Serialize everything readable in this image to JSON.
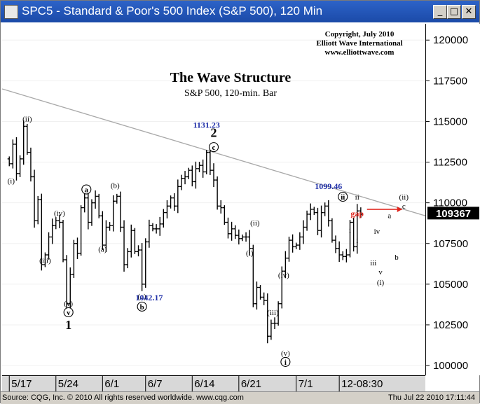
{
  "window": {
    "title": "SPC5 - Standard & Poor's 500 Index (S&P 500), 120 Min",
    "min_glyph": "_",
    "max_glyph": "□",
    "close_glyph": "✕"
  },
  "status_bar": {
    "source": "Source: CQG, Inc. © 2010 All rights reserved worldwide.  www.cqg.com",
    "timestamp": "Thu Jul 22 2010 17:11:44"
  },
  "colors": {
    "bar": "#000000",
    "trendline": "#a8a8a8",
    "price_label": "#1f2fa8",
    "gap": "#e0241c"
  },
  "chart_data": {
    "type": "ohlc",
    "title": "The Wave Structure",
    "subtitle": "S&P 500, 120-min. Bar",
    "copyright": [
      "Copyright, July 2010",
      "Elliott Wave International",
      "www.elliottwave.com"
    ],
    "y_ticks": [
      100000,
      102500,
      105000,
      107500,
      110000,
      112500,
      115000,
      117500,
      120000
    ],
    "ylim": [
      99400,
      121000
    ],
    "current_price": "109367",
    "x_ticks": [
      "5/17",
      "5/24",
      "6/1",
      "6/7",
      "6/14",
      "6/21",
      "7/1",
      "12-08:30"
    ],
    "x_tick_pos": [
      0,
      13,
      26,
      38,
      51,
      64,
      80,
      92
    ],
    "xlim": [
      -2,
      116
    ],
    "closes": [
      112400,
      113600,
      111800,
      112700,
      114700,
      113100,
      111600,
      108900,
      110200,
      106200,
      106800,
      107900,
      108600,
      108900,
      108800,
      106500,
      103800,
      105600,
      107500,
      106900,
      109700,
      110300,
      108800,
      110000,
      110400,
      109200,
      107400,
      108500,
      108600,
      110100,
      110400,
      108500,
      106200,
      107000,
      108300,
      107000,
      107100,
      105000,
      107600,
      108600,
      108400,
      108400,
      108700,
      109400,
      109800,
      110300,
      109800,
      111000,
      111500,
      111600,
      112000,
      111300,
      112100,
      112300,
      111900,
      113100,
      112000,
      111400,
      109800,
      109700,
      108800,
      108100,
      108400,
      108000,
      107800,
      107900,
      107900,
      107200,
      103800,
      104800,
      104200,
      104000,
      101800,
      102600,
      102600,
      103800,
      105800,
      106600,
      107700,
      107300,
      107400,
      107900,
      108500,
      109300,
      109600,
      109400,
      108300,
      109400,
      109800,
      108900,
      107700,
      107200,
      106800,
      106700,
      106800,
      108800,
      107300,
      109500,
      109300
    ],
    "price_labels": [
      {
        "text": "1131.23",
        "x": 55,
        "y": 114600
      },
      {
        "text": "1042.17",
        "x": 39,
        "y": 104000
      },
      {
        "text": "1099.46",
        "x": 89,
        "y": 110850
      }
    ],
    "trendline": {
      "x1": -2,
      "y1": 117000,
      "x2": 116,
      "y2": 109200
    },
    "gap": {
      "text": "gap",
      "x": 97,
      "y": 109350
    },
    "wave_labels": [
      {
        "text": "(ii)",
        "x": 5,
        "y": 115000,
        "style": "plain"
      },
      {
        "text": "(i)",
        "x": 0.5,
        "y": 111200,
        "style": "plain"
      },
      {
        "text": "(iv)",
        "x": 14,
        "y": 109200,
        "style": "plain"
      },
      {
        "text": "(iii)",
        "x": 10,
        "y": 106300,
        "style": "plain"
      },
      {
        "text": "(v)",
        "x": 16.5,
        "y": 103650,
        "style": "plain"
      },
      {
        "text": "v",
        "x": 16.5,
        "y": 103100,
        "style": "circle"
      },
      {
        "text": "1",
        "x": 16.5,
        "y": 102250,
        "style": "big"
      },
      {
        "text": "a",
        "x": 21.5,
        "y": 110650,
        "style": "circle"
      },
      {
        "text": "(b)",
        "x": 29.5,
        "y": 110900,
        "style": "plain"
      },
      {
        "text": "(a)",
        "x": 26,
        "y": 107000,
        "style": "plain"
      },
      {
        "text": "(c)",
        "x": 37,
        "y": 104100,
        "style": "plain"
      },
      {
        "text": "b",
        "x": 37,
        "y": 103450,
        "style": "circle"
      },
      {
        "text": "2",
        "x": 57,
        "y": 114050,
        "style": "big"
      },
      {
        "text": "c",
        "x": 57,
        "y": 113250,
        "style": "circle"
      },
      {
        "text": "(ii)",
        "x": 68.5,
        "y": 108600,
        "style": "plain"
      },
      {
        "text": "(i)",
        "x": 67,
        "y": 106750,
        "style": "plain"
      },
      {
        "text": "(iv)",
        "x": 76.5,
        "y": 105400,
        "style": "plain"
      },
      {
        "text": "(iii)",
        "x": 73.5,
        "y": 103100,
        "style": "plain"
      },
      {
        "text": "(v)",
        "x": 77,
        "y": 100600,
        "style": "plain"
      },
      {
        "text": "i",
        "x": 77,
        "y": 100050,
        "style": "circle"
      },
      {
        "text": "ii",
        "x": 93,
        "y": 110200,
        "style": "circle"
      },
      {
        "text": "ii",
        "x": 97,
        "y": 110200,
        "style": "plain"
      },
      {
        "text": "i",
        "x": 95,
        "y": 108150,
        "style": "plain"
      },
      {
        "text": "i",
        "x": 97,
        "y": 107550,
        "style": "plain"
      },
      {
        "text": "iii",
        "x": 101.5,
        "y": 106150,
        "style": "plain"
      },
      {
        "text": "iv",
        "x": 102.5,
        "y": 108100,
        "style": "plain"
      },
      {
        "text": "v",
        "x": 103.5,
        "y": 105600,
        "style": "plain"
      },
      {
        "text": "(i)",
        "x": 103.5,
        "y": 104950,
        "style": "plain"
      },
      {
        "text": "a",
        "x": 106,
        "y": 109050,
        "style": "plain"
      },
      {
        "text": "b",
        "x": 108,
        "y": 106500,
        "style": "plain"
      },
      {
        "text": "(ii)",
        "x": 110,
        "y": 110200,
        "style": "plain"
      },
      {
        "text": "c",
        "x": 110,
        "y": 109650,
        "style": "plain"
      }
    ]
  }
}
